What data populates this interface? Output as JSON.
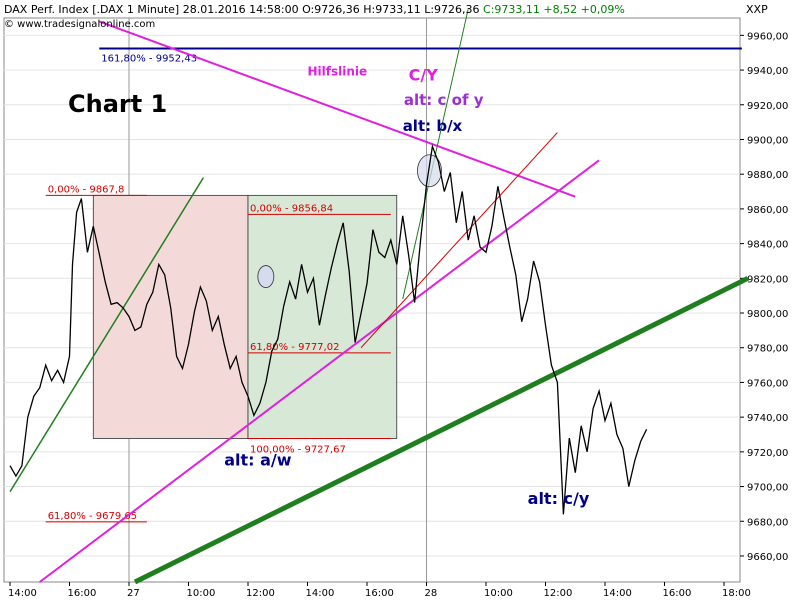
{
  "header": {
    "instrument": "DAX Perf. Index [.DAX  1 Minute]",
    "datetime": "28.01.2016 14:58:00",
    "ohlc": "O:9726,36 H:9733,11 L:9726,36",
    "close": "C:9733,11 +8,52 +0,09%",
    "website": "© www.tradesignalonline.com",
    "corner_label": "XXP"
  },
  "chart_title": "Chart 1",
  "colors": {
    "price": "#000000",
    "fib": "#d40000",
    "magenta": "#e020e0",
    "green": "#1f7f1f",
    "blue": "#00008b",
    "box_red": "#f4d9d9",
    "box_green": "#d7e8d7",
    "grid": "#cccccc",
    "circle": "#d6dbee"
  },
  "chart_data": {
    "type": "line",
    "y_axis": {
      "min": 9645,
      "max": 9970,
      "ticks": [
        9660,
        9680,
        9700,
        9720,
        9740,
        9760,
        9780,
        9800,
        9820,
        9840,
        9860,
        9880,
        9900,
        9920,
        9940,
        9960
      ]
    },
    "x_axis": {
      "labels": [
        "14:00",
        "16:00",
        "27",
        "10:00",
        "12:00",
        "14:00",
        "16:00",
        "28",
        "10:00",
        "12:00",
        "14:00",
        "16:00",
        "18:00"
      ],
      "label_index": [
        0,
        1,
        2,
        3,
        4,
        5,
        6,
        7,
        8,
        9,
        10,
        11,
        12
      ]
    },
    "price_series": [
      [
        0,
        9712
      ],
      [
        0.1,
        9706
      ],
      [
        0.2,
        9712
      ],
      [
        0.3,
        9740
      ],
      [
        0.4,
        9752
      ],
      [
        0.5,
        9757
      ],
      [
        0.6,
        9770
      ],
      [
        0.7,
        9761
      ],
      [
        0.8,
        9767
      ],
      [
        0.9,
        9760
      ],
      [
        1.0,
        9775
      ],
      [
        1.05,
        9828
      ],
      [
        1.12,
        9858
      ],
      [
        1.2,
        9866
      ],
      [
        1.3,
        9835
      ],
      [
        1.4,
        9850
      ],
      [
        1.5,
        9834
      ],
      [
        1.6,
        9818
      ],
      [
        1.7,
        9805
      ],
      [
        1.8,
        9806
      ],
      [
        1.9,
        9803
      ],
      [
        2.0,
        9798
      ],
      [
        2.1,
        9790
      ],
      [
        2.2,
        9792
      ],
      [
        2.3,
        9805
      ],
      [
        2.4,
        9812
      ],
      [
        2.5,
        9828
      ],
      [
        2.6,
        9822
      ],
      [
        2.7,
        9803
      ],
      [
        2.8,
        9775
      ],
      [
        2.9,
        9768
      ],
      [
        3.0,
        9782
      ],
      [
        3.1,
        9801
      ],
      [
        3.2,
        9815
      ],
      [
        3.3,
        9807
      ],
      [
        3.4,
        9790
      ],
      [
        3.5,
        9798
      ],
      [
        3.6,
        9782
      ],
      [
        3.7,
        9768
      ],
      [
        3.8,
        9775
      ],
      [
        3.9,
        9760
      ],
      [
        4.0,
        9752
      ],
      [
        4.1,
        9741
      ],
      [
        4.2,
        9748
      ],
      [
        4.3,
        9760
      ],
      [
        4.4,
        9778
      ],
      [
        4.5,
        9785
      ],
      [
        4.6,
        9804
      ],
      [
        4.7,
        9818
      ],
      [
        4.8,
        9808
      ],
      [
        4.9,
        9828
      ],
      [
        5.0,
        9812
      ],
      [
        5.1,
        9820
      ],
      [
        5.2,
        9793
      ],
      [
        5.3,
        9810
      ],
      [
        5.4,
        9826
      ],
      [
        5.5,
        9840
      ],
      [
        5.6,
        9852
      ],
      [
        5.7,
        9824
      ],
      [
        5.8,
        9783
      ],
      [
        5.9,
        9800
      ],
      [
        6.0,
        9817
      ],
      [
        6.1,
        9848
      ],
      [
        6.2,
        9835
      ],
      [
        6.3,
        9832
      ],
      [
        6.4,
        9842
      ],
      [
        6.5,
        9828
      ],
      [
        6.6,
        9856
      ],
      [
        6.7,
        9833
      ],
      [
        6.8,
        9806
      ],
      [
        6.9,
        9842
      ],
      [
        7.0,
        9874
      ],
      [
        7.1,
        9896
      ],
      [
        7.2,
        9887
      ],
      [
        7.3,
        9870
      ],
      [
        7.4,
        9881
      ],
      [
        7.5,
        9852
      ],
      [
        7.6,
        9870
      ],
      [
        7.7,
        9842
      ],
      [
        7.8,
        9856
      ],
      [
        7.9,
        9838
      ],
      [
        8.0,
        9835
      ],
      [
        8.1,
        9850
      ],
      [
        8.2,
        9873
      ],
      [
        8.3,
        9855
      ],
      [
        8.4,
        9838
      ],
      [
        8.5,
        9822
      ],
      [
        8.6,
        9795
      ],
      [
        8.7,
        9808
      ],
      [
        8.8,
        9830
      ],
      [
        8.9,
        9818
      ],
      [
        9.0,
        9793
      ],
      [
        9.1,
        9770
      ],
      [
        9.2,
        9760
      ],
      [
        9.3,
        9684
      ],
      [
        9.4,
        9728
      ],
      [
        9.5,
        9708
      ],
      [
        9.6,
        9735
      ],
      [
        9.7,
        9720
      ],
      [
        9.8,
        9745
      ],
      [
        9.9,
        9755
      ],
      [
        10.0,
        9738
      ],
      [
        10.1,
        9748
      ],
      [
        10.2,
        9730
      ],
      [
        10.3,
        9722
      ],
      [
        10.4,
        9700
      ],
      [
        10.5,
        9715
      ],
      [
        10.6,
        9726
      ],
      [
        10.7,
        9733
      ]
    ],
    "fib_levels": [
      {
        "label": "161,80% - 9952,43",
        "value": 9952.43,
        "color": "blue"
      },
      {
        "label": "0,00% - 9867,8",
        "value": 9867.8,
        "color": "red"
      },
      {
        "label": "0,00% - 9856,84",
        "value": 9856.84,
        "color": "red"
      },
      {
        "label": "61,80% - 9777,02",
        "value": 9777.02,
        "color": "red"
      },
      {
        "label": "100,00% - 9727,67",
        "value": 9727.67,
        "color": "red"
      },
      {
        "label": "61,80% - 9679,65",
        "value": 9679.65,
        "color": "red"
      }
    ],
    "annotations": [
      {
        "text": "Hilfslinie",
        "color": "magenta"
      },
      {
        "text": "C/Y",
        "color": "magenta"
      },
      {
        "text": "alt: c of y",
        "color": "purple"
      },
      {
        "text": "alt: b/x",
        "color": "blue"
      },
      {
        "text": "alt: a/w",
        "color": "blue"
      },
      {
        "text": "alt: c/y",
        "color": "blue"
      }
    ]
  }
}
